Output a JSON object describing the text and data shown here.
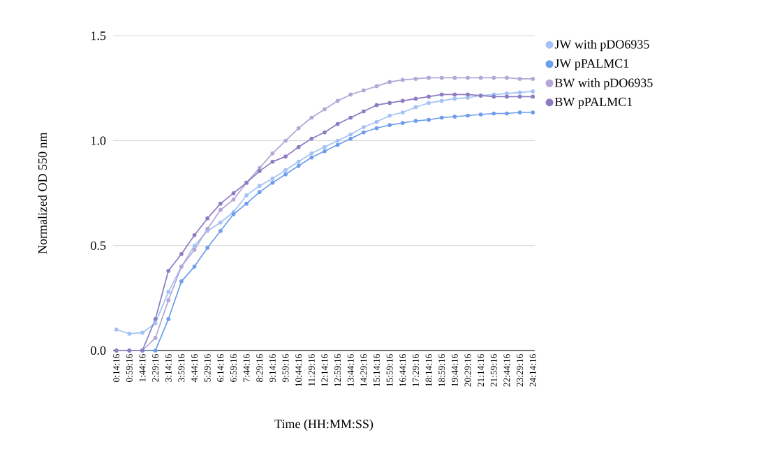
{
  "chart_data": {
    "type": "line",
    "xlabel": "Time (HH:MM:SS)",
    "ylabel": "Normalized OD 550 nm",
    "x": [
      0.2378,
      0.9878,
      1.7378,
      2.4878,
      3.2378,
      3.9878,
      4.7378,
      5.4878,
      6.2378,
      6.9878,
      7.7378,
      8.4878,
      9.2378,
      9.9878,
      10.7378,
      11.4878,
      12.2378,
      12.9878,
      13.7378,
      14.4878,
      15.2378,
      15.9878,
      16.7378,
      17.4878,
      18.2378,
      18.9878,
      19.7378,
      20.4878,
      21.2378,
      21.9878,
      22.7378,
      23.4878,
      24.2378
    ],
    "series": [
      {
        "name": "JW with pDO6935",
        "color": "#a4c2f4",
        "values": [
          0.1,
          0.08,
          0.085,
          0.13,
          0.28,
          0.4,
          0.5,
          0.57,
          0.61,
          0.66,
          0.74,
          0.785,
          0.82,
          0.86,
          0.9,
          0.94,
          0.97,
          1.0,
          1.03,
          1.065,
          1.09,
          1.12,
          1.135,
          1.16,
          1.18,
          1.19,
          1.2,
          1.205,
          1.215,
          1.22,
          1.225,
          1.23,
          1.235
        ]
      },
      {
        "name": "JW pPALMC1",
        "color": "#6d9eeb",
        "values": [
          0,
          0,
          0,
          0,
          0.15,
          0.33,
          0.4,
          0.49,
          0.57,
          0.65,
          0.7,
          0.755,
          0.8,
          0.84,
          0.88,
          0.92,
          0.95,
          0.98,
          1.01,
          1.04,
          1.06,
          1.075,
          1.085,
          1.095,
          1.1,
          1.11,
          1.115,
          1.12,
          1.125,
          1.13,
          1.13,
          1.135,
          1.135
        ]
      },
      {
        "name": "BW with pDO6935",
        "color": "#b4a7d6",
        "values": [
          0,
          0,
          0,
          0.06,
          0.24,
          0.4,
          0.48,
          0.58,
          0.67,
          0.72,
          0.8,
          0.87,
          0.94,
          1.0,
          1.06,
          1.11,
          1.15,
          1.19,
          1.22,
          1.24,
          1.26,
          1.28,
          1.29,
          1.295,
          1.3,
          1.3,
          1.3,
          1.3,
          1.3,
          1.3,
          1.3,
          1.295,
          1.295
        ]
      },
      {
        "name": "BW pPALMC1",
        "color": "#8e7cc3",
        "values": [
          0,
          0,
          0,
          0.15,
          0.38,
          0.46,
          0.55,
          0.63,
          0.7,
          0.75,
          0.8,
          0.855,
          0.9,
          0.925,
          0.97,
          1.01,
          1.04,
          1.08,
          1.11,
          1.14,
          1.17,
          1.18,
          1.19,
          1.2,
          1.21,
          1.22,
          1.22,
          1.22,
          1.215,
          1.21,
          1.21,
          1.21,
          1.21
        ]
      }
    ],
    "xlim": [
      0.05,
      24.35
    ],
    "xticks": [
      {
        "value": 0.2378,
        "label": "0:14:16"
      },
      {
        "value": 0.9878,
        "label": "0:59:16"
      },
      {
        "value": 1.7378,
        "label": "1:44:16"
      },
      {
        "value": 2.4878,
        "label": "2:29:16"
      },
      {
        "value": 3.2378,
        "label": "3:14:16"
      },
      {
        "value": 3.9878,
        "label": "3:59:16"
      },
      {
        "value": 4.7378,
        "label": "4:44:16"
      },
      {
        "value": 5.4878,
        "label": "5:29:16"
      },
      {
        "value": 6.2378,
        "label": "6:14:16"
      },
      {
        "value": 6.9878,
        "label": "6:59:16"
      },
      {
        "value": 7.7378,
        "label": "7:44:16"
      },
      {
        "value": 8.4878,
        "label": "8:29:16"
      },
      {
        "value": 9.2378,
        "label": "9:14:16"
      },
      {
        "value": 9.9878,
        "label": "9:59:16"
      },
      {
        "value": 10.7378,
        "label": "10:44:16"
      },
      {
        "value": 11.4878,
        "label": "11:29:16"
      },
      {
        "value": 12.2378,
        "label": "12:14:16"
      },
      {
        "value": 12.9878,
        "label": "12:59:16"
      },
      {
        "value": 13.7378,
        "label": "13:44:16"
      },
      {
        "value": 14.4878,
        "label": "14:29:16"
      },
      {
        "value": 15.2378,
        "label": "15:14:16"
      },
      {
        "value": 15.9878,
        "label": "15:59:16"
      },
      {
        "value": 16.7378,
        "label": "16:44:16"
      },
      {
        "value": 17.4878,
        "label": "17:29:16"
      },
      {
        "value": 18.2378,
        "label": "18:14:16"
      },
      {
        "value": 18.9878,
        "label": "18:59:16"
      },
      {
        "value": 19.7378,
        "label": "19:44:16"
      },
      {
        "value": 20.4878,
        "label": "20:29:16"
      },
      {
        "value": 21.2378,
        "label": "21:14:16"
      },
      {
        "value": 21.9878,
        "label": "21:59:16"
      },
      {
        "value": 22.7378,
        "label": "22:44:16"
      },
      {
        "value": 23.4878,
        "label": "23:29:16"
      },
      {
        "value": 24.2378,
        "label": "24:14:16"
      }
    ],
    "ylim": [
      0,
      1.5
    ],
    "yticks": [
      {
        "value": 0,
        "label": "0.0"
      },
      {
        "value": 0.5,
        "label": "0.5"
      },
      {
        "value": 1,
        "label": "1.0"
      },
      {
        "value": 1.5,
        "label": "1.5"
      }
    ],
    "grid": "y",
    "legend": "right",
    "marker": "circle",
    "line_style": "solid"
  }
}
